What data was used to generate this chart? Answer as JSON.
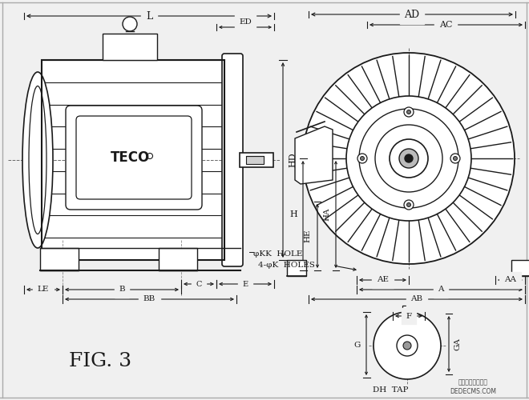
{
  "title": "FIG. 3",
  "bg_color": "#f0f0f0",
  "line_color": "#1a1a1a",
  "fig_width": 6.6,
  "fig_height": 5.0,
  "dpi": 100,
  "labels": {
    "L": "L",
    "ED": "ED",
    "AD": "AD",
    "AC": "AC",
    "HD": "HD",
    "H": "H",
    "HE": "HE",
    "HA": "HA",
    "LE": "LE",
    "B": "B",
    "BB": "BB",
    "C": "C",
    "E": "E",
    "AE": "AE",
    "AA": "AA",
    "A": "A",
    "AB": "AB",
    "F": "F",
    "G": "G",
    "GA": "GA",
    "DH_TAP": "DH  TAP",
    "KK": "φKK  HOLE",
    "K": "4-φK  HOLES",
    "TECO": "TECO",
    "watermark": "组梦内容管理系统",
    "watermark2": "DEDECMS.COM"
  }
}
